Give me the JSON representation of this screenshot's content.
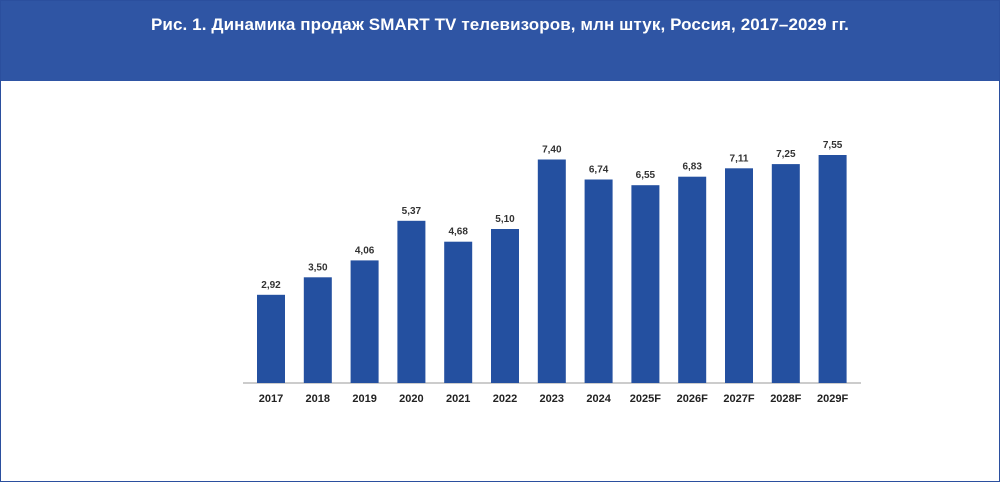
{
  "header": {
    "title": "Рис. 1. Динамика продаж SMART TV телевизоров, млн штук, Россия, 2017–2029 гг."
  },
  "colors": {
    "header_bg": "#2f55a4",
    "bar": "#2450a0"
  },
  "chart_data": {
    "type": "bar",
    "title": "Рис. 1. Динамика продаж SMART TV телевизоров, млн штук, Россия, 2017–2029 гг.",
    "xlabel": "",
    "ylabel": "",
    "ylim": [
      0,
      8
    ],
    "grid": false,
    "legend": "none",
    "categories": [
      "2017",
      "2018",
      "2019",
      "2020",
      "2021",
      "2022",
      "2023",
      "2024",
      "2025F",
      "2026F",
      "2027F",
      "2028F",
      "2029F"
    ],
    "values": [
      2.92,
      3.5,
      4.06,
      5.37,
      4.68,
      5.1,
      7.4,
      6.74,
      6.55,
      6.83,
      7.11,
      7.25,
      7.55
    ],
    "value_labels": [
      "2,92",
      "3,50",
      "4,06",
      "5,37",
      "4,68",
      "5,10",
      "7,40",
      "6,74",
      "6,55",
      "6,83",
      "7,11",
      "7,25",
      "7,55"
    ]
  }
}
